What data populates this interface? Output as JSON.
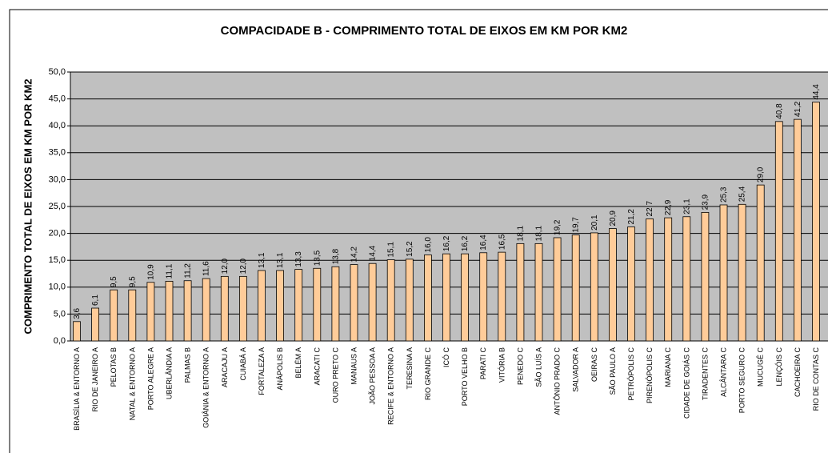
{
  "chart_data": {
    "type": "bar",
    "title": "COMPACIDADE B - COMPRIMENTO TOTAL DE EIXOS EM KM POR KM2",
    "y_label": "COMPRIMENTO TOTAL DE EIXOS EM KM POR KM2",
    "categories": [
      "BRASÍLIA & ENTORNO A",
      "RIO DE JANEIRO A",
      "PELOTAS B",
      "NATAL & ENTORNO A",
      "PORTO ALEGRE A",
      "UBERLÂNDIA A",
      "PALMAS B",
      "GOIÂNIA & ENTORNO A",
      "ARACAJU A",
      "CUIABÁ A",
      "FORTALEZA A",
      "ANÁPOLIS B",
      "BELÉM A",
      "ARACATI C",
      "OURO PRETO C",
      "MANAUS A",
      "JOÃO PESSOA A",
      "RECIFE & ENTORNO A",
      "TERESINA A",
      "RIO GRANDE C",
      "ICÓ C",
      "PORTO VELHO B",
      "PARATI C",
      "VITÓRIA B",
      "PENEDO C",
      "SÃO LUÍS A",
      "ANTÔNIO PRADO C",
      "SALVADOR A",
      "OEIRAS C",
      "SÃO PAULO A",
      "PETRÓPOLIS C",
      "PIRENÓPOLIS C",
      "MARIANA C",
      "CIDADE DE GOIÁS C",
      "TIRADENTES C",
      "ALCÂNTARA C",
      "PORTO SEGURO C",
      "MUCUGÊ C",
      "LENÇÓIS C",
      "CACHOEIRA C",
      "RIO DE CONTAS C"
    ],
    "values": [
      3.6,
      6.1,
      9.5,
      9.5,
      10.9,
      11.1,
      11.2,
      11.6,
      12.0,
      12.0,
      13.1,
      13.1,
      13.3,
      13.5,
      13.8,
      14.2,
      14.4,
      15.1,
      15.2,
      16.0,
      16.2,
      16.2,
      16.4,
      16.5,
      18.1,
      18.1,
      19.2,
      19.7,
      20.1,
      20.9,
      21.2,
      22.7,
      22.9,
      23.1,
      23.9,
      25.3,
      25.4,
      29.0,
      40.8,
      41.2,
      44.4
    ],
    "value_labels": [
      "3,6",
      "6,1",
      "9,5",
      "9,5",
      "10,9",
      "11,1",
      "11,2",
      "11,6",
      "12,0",
      "12,0",
      "13,1",
      "13,1",
      "13,3",
      "13,5",
      "13,8",
      "14,2",
      "14,4",
      "15,1",
      "15,2",
      "16,0",
      "16,2",
      "16,2",
      "16,4",
      "16,5",
      "18,1",
      "18,1",
      "19,2",
      "19,7",
      "20,1",
      "20,9",
      "21,2",
      "22,7",
      "22,9",
      "23,1",
      "23,9",
      "25,3",
      "25,4",
      "29,0",
      "40,8",
      "41,2",
      "44,4"
    ],
    "color": "#ffcc99",
    "ylim": [
      0,
      50
    ],
    "yticks": [
      {
        "value": 0,
        "label": "0,0"
      },
      {
        "value": 5,
        "label": "5,0"
      },
      {
        "value": 10,
        "label": "10,0"
      },
      {
        "value": 15,
        "label": "15,0"
      },
      {
        "value": 20,
        "label": "20,0"
      },
      {
        "value": 25,
        "label": "25,0"
      },
      {
        "value": 30,
        "label": "30,0"
      },
      {
        "value": 35,
        "label": "35,0"
      },
      {
        "value": 40,
        "label": "40,0"
      },
      {
        "value": 45,
        "label": "45,0"
      },
      {
        "value": 50,
        "label": "50,0"
      }
    ],
    "grid": true
  }
}
